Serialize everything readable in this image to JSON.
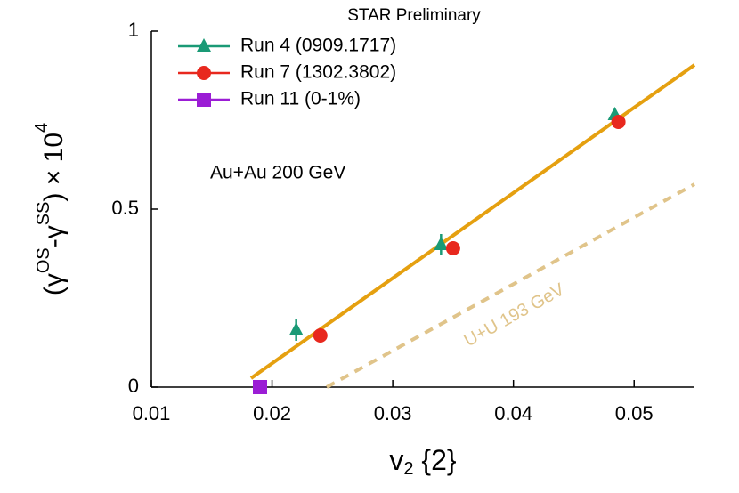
{
  "chart_data": {
    "type": "scatter",
    "title": "STAR Preliminary",
    "x_label": {
      "base": "v",
      "sub": "2",
      "rest": " {2}"
    },
    "y_label": {
      "open": "(γ",
      "sup1": "OS",
      "mid": "-γ",
      "sup2": "SS",
      "close": ") × 10",
      "sup3": "4"
    },
    "annotations": [
      "Au+Au 200 GeV",
      "U+U 193 GeV"
    ],
    "xlim": [
      0.01,
      0.055
    ],
    "ylim": [
      0,
      1
    ],
    "xticks": [
      0.01,
      0.02,
      0.03,
      0.04,
      0.05
    ],
    "yticks": [
      0,
      0.5,
      1
    ],
    "legend": "upper left",
    "series": [
      {
        "name": "Run 4 (0909.1717)",
        "color": "#1a9a76",
        "marker": "triangle",
        "x": [
          0.022,
          0.034,
          0.0484
        ],
        "values": [
          0.16,
          0.4,
          0.765
        ],
        "errors": [
          0.03,
          0.03,
          0.02
        ]
      },
      {
        "name": "Run 7 (1302.3802)",
        "color": "#e8281e",
        "marker": "circle",
        "x": [
          0.024,
          0.035,
          0.0487
        ],
        "values": [
          0.145,
          0.39,
          0.745
        ]
      },
      {
        "name": "Run 11 (0-1%)",
        "color": "#9b1dd5",
        "marker": "square",
        "x": [
          0.019
        ],
        "values": [
          0
        ]
      }
    ],
    "lines": [
      {
        "color": "#e5a010",
        "style": "solid",
        "x": [
          0.01826,
          0.055
        ],
        "values": [
          0.025,
          0.905
        ]
      },
      {
        "color": "#e0c48a",
        "style": "dashed",
        "x": [
          0.02453,
          0.055
        ],
        "values": [
          0,
          0.57
        ]
      }
    ]
  }
}
